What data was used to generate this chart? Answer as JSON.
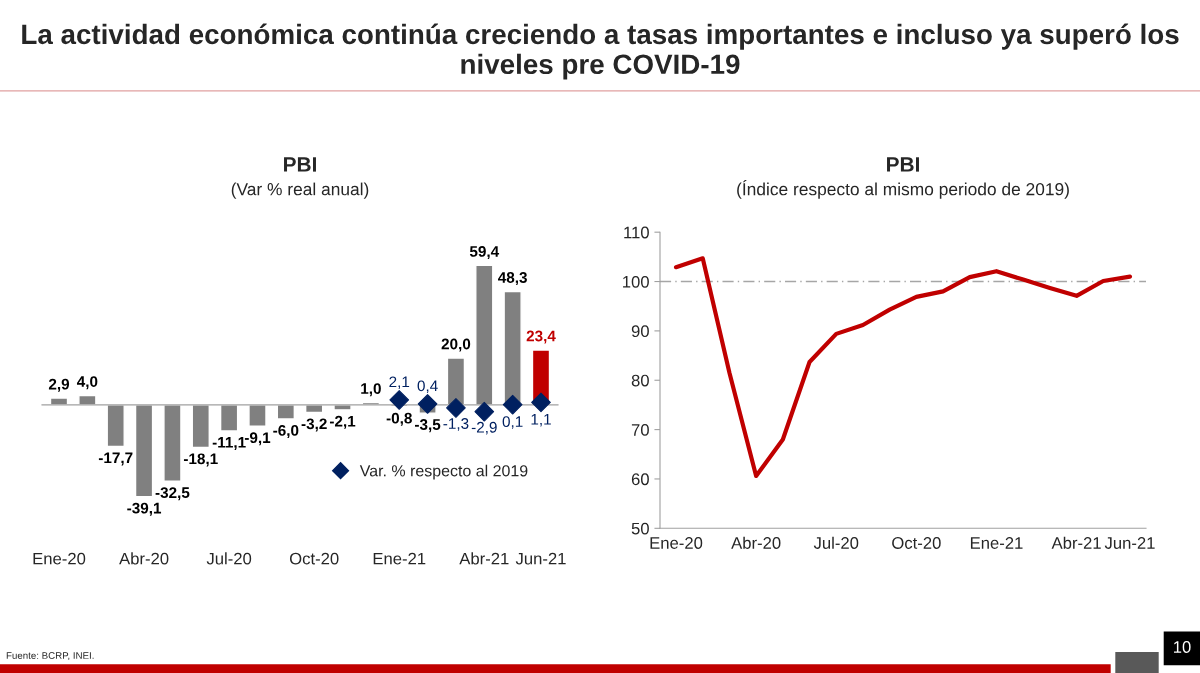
{
  "chart_data": [
    {
      "type": "bar",
      "title": "PBI",
      "subtitle": "(Var % real anual)",
      "annotations": [
        "La actividad económica continúa creciendo a tasas importantes e incluso ya superó los niveles pre COVID-19",
        "Fuente: BCRP, INEI."
      ],
      "categories": [
        "Ene-20",
        null,
        null,
        "Abr-20",
        null,
        null,
        "Jul-20",
        null,
        null,
        "Oct-20",
        null,
        null,
        "Ene-21",
        null,
        null,
        "Abr-21",
        null,
        "Jun-21"
      ],
      "legend": "bottom right",
      "series": [
        {
          "type": "bar",
          "colors": [
            "#808080",
            "#808080",
            "#808080",
            "#808080",
            "#808080",
            "#808080",
            "#808080",
            "#808080",
            "#808080",
            "#808080",
            "#808080",
            "#808080",
            "#808080",
            "#808080",
            "#808080",
            "#808080",
            "#808080",
            "#c00000"
          ],
          "values": [
            2.9,
            4.0,
            -17.7,
            -39.1,
            -32.5,
            -18.1,
            -11.1,
            -9.1,
            -6.0,
            -3.2,
            -2.1,
            1.0,
            -0.8,
            -3.5,
            20.0,
            59.4,
            48.3,
            23.4
          ],
          "value_labels": [
            "2,9",
            "4,0",
            "-17,7",
            "-39,1",
            "-32,5",
            "-18,1",
            "-11,1",
            "-9,1",
            "-6,0",
            "-3,2",
            "-2,1",
            "1,0",
            "-0,8",
            "-3,5",
            "20,0",
            "59,4",
            "48,3",
            "23,4"
          ]
        },
        {
          "type": "scatter",
          "name": "Var. % respecto al 2019",
          "color": "#002060",
          "marker": "diamond",
          "values": [
            null,
            null,
            null,
            null,
            null,
            null,
            null,
            null,
            null,
            null,
            null,
            null,
            2.1,
            0.4,
            -1.3,
            -2.9,
            0.1,
            1.1
          ],
          "value_labels": [
            null,
            null,
            null,
            null,
            null,
            null,
            null,
            null,
            null,
            null,
            null,
            null,
            "2,1",
            "0,4",
            "-1,3",
            "-2,9",
            "0,1",
            "1,1"
          ]
        }
      ]
    },
    {
      "type": "line",
      "title": "PBI",
      "subtitle": "(Índice respecto al mismo periodo de 2019)",
      "annotations": [
        "10"
      ],
      "categories": [
        "Ene-20",
        null,
        null,
        "Abr-20",
        null,
        null,
        "Jul-20",
        null,
        null,
        "Oct-20",
        null,
        null,
        "Ene-21",
        null,
        null,
        "Abr-21",
        null,
        "Jun-21"
      ],
      "ylim": [
        50,
        110
      ],
      "yticks": [
        50,
        60,
        70,
        80,
        90,
        100,
        110
      ],
      "grid": false,
      "ref_lines": [
        {
          "axis": "y",
          "value": 100,
          "color": "#a6a6a6",
          "line_style": "dashed"
        }
      ],
      "series": [
        {
          "color": "#c00000",
          "values": [
            102.9,
            104.7,
            81.5,
            60.6,
            68.0,
            83.7,
            89.4,
            91.2,
            94.3,
            96.9,
            98.0,
            100.9,
            102.1,
            100.4,
            98.7,
            97.1,
            100.1,
            101.0
          ]
        }
      ]
    }
  ]
}
